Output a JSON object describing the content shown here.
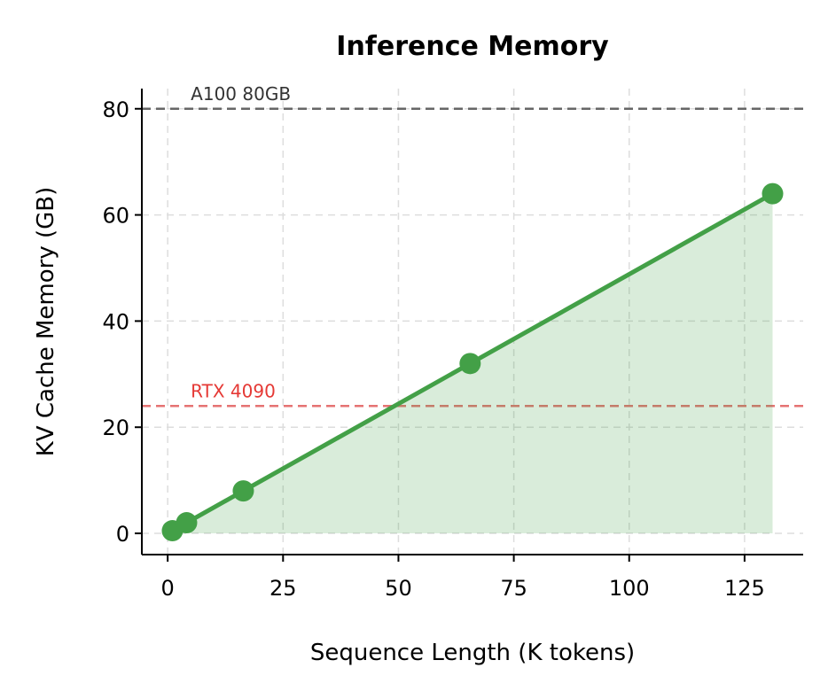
{
  "chart_data": {
    "type": "line",
    "title": "Inference Memory",
    "xlabel": "Sequence Length (K tokens)",
    "ylabel": "KV Cache Memory (GB)",
    "xlim": [
      -5.6,
      137.7
    ],
    "ylim": [
      -4,
      83.8
    ],
    "xticks": [
      0,
      25,
      50,
      75,
      100,
      125
    ],
    "yticks": [
      0,
      20,
      40,
      60,
      80
    ],
    "grid": true,
    "series": [
      {
        "x": [
          1.024,
          4.096,
          16.384,
          65.536,
          131.072
        ],
        "y": [
          0.5,
          2,
          8,
          32,
          64
        ],
        "color": "#43a047",
        "fill": true
      }
    ],
    "reference_lines": [
      {
        "y": 80,
        "label": "A100 80GB",
        "color": "#666666",
        "text_color": "#333333"
      },
      {
        "y": 24,
        "label": "RTX 4090",
        "color": "#e57373",
        "text_color": "#e53935"
      }
    ]
  }
}
